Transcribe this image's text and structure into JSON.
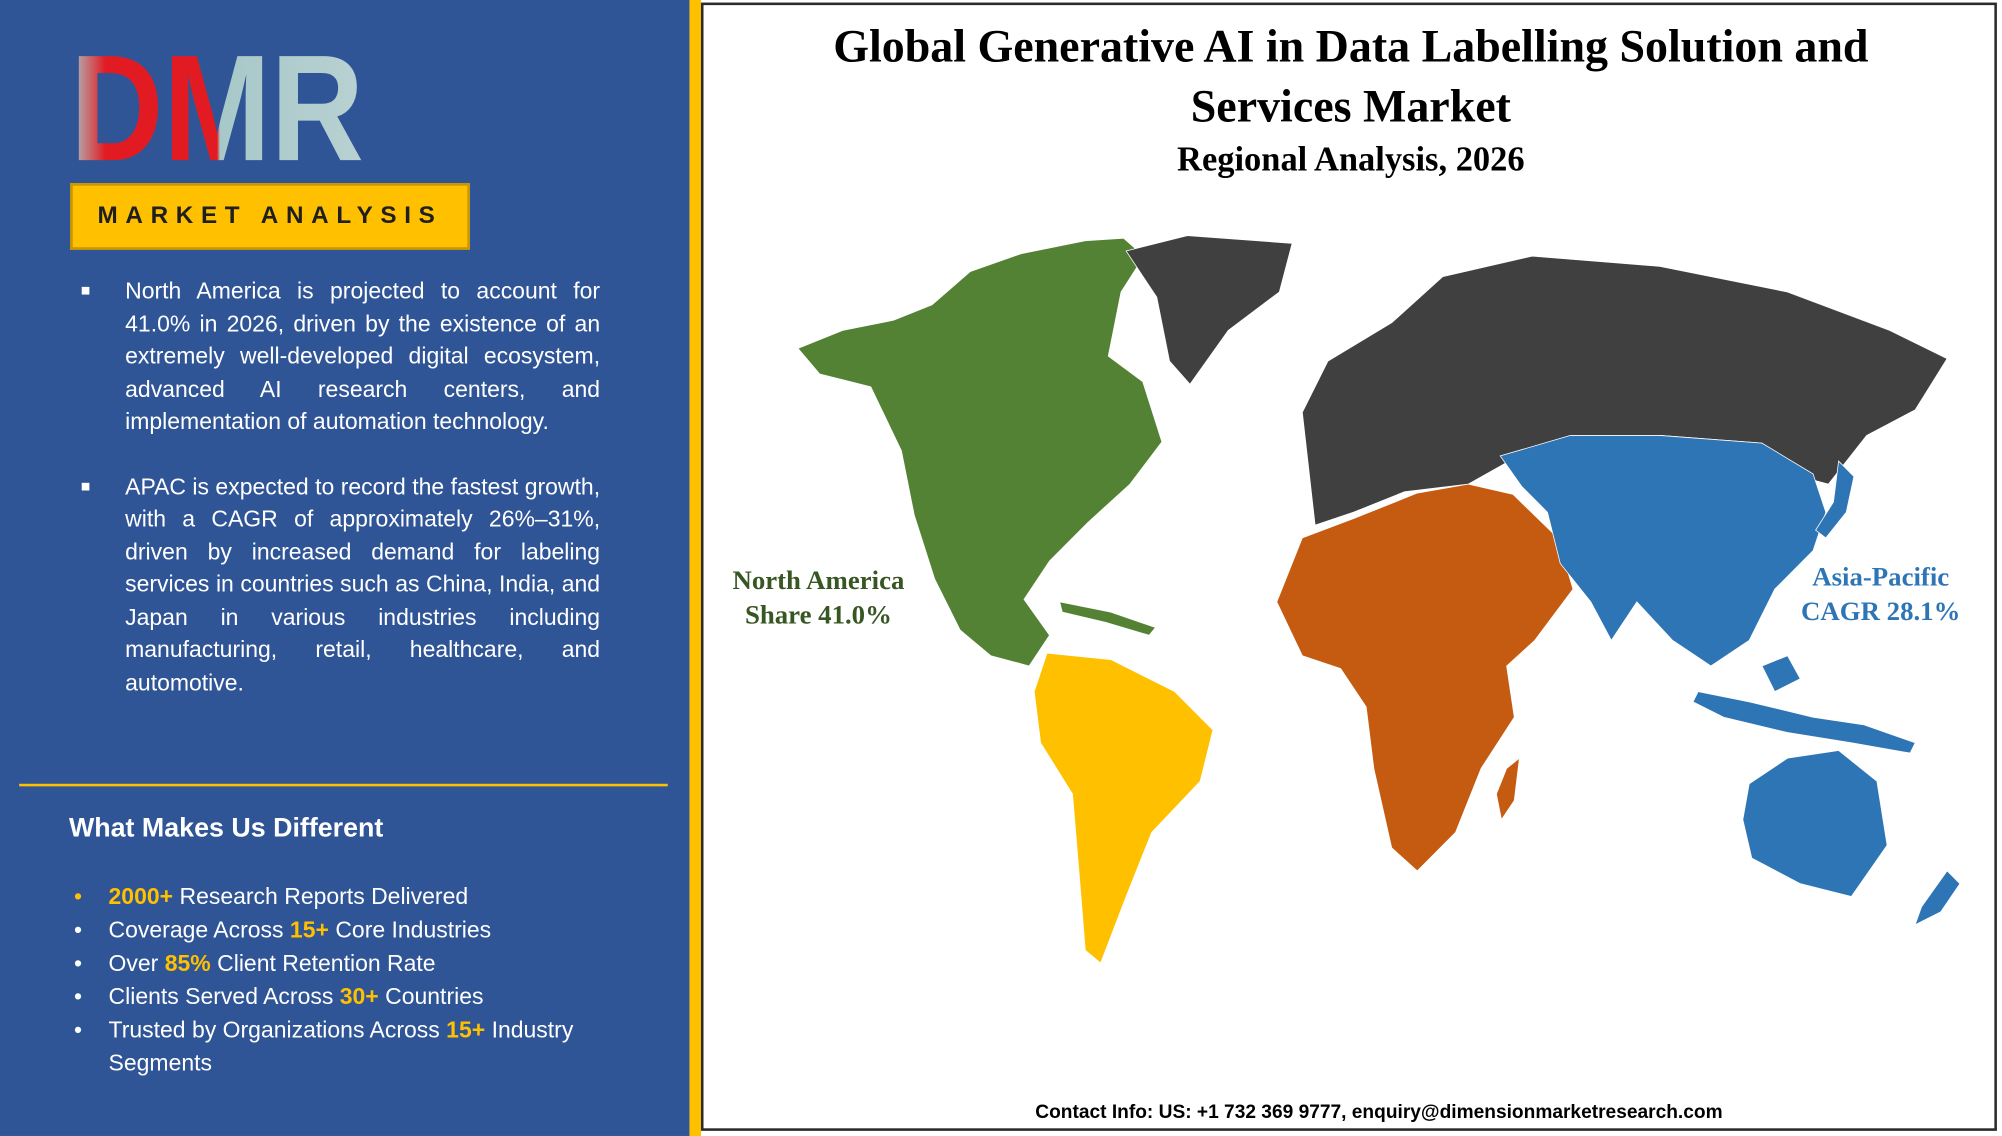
{
  "logo": {
    "text": "DMR"
  },
  "badge": "MARKET ANALYSIS",
  "highlights": [
    "North America is projected to account for 41.0% in 2026, driven by the existence of an extremely well-developed digital ecosystem, advanced AI research centers, and implementation of automation technology.",
    "APAC is expected to record the fastest growth, with a CAGR of approximately 26%–31%, driven by increased demand for labeling services in countries such as China, India, and Japan in various industries including manufacturing, retail, healthcare, and automotive."
  ],
  "different": {
    "title": "What Makes Us Different",
    "items": [
      [
        {
          "text": "2000+",
          "em": true
        },
        {
          "text": " Research Reports Delivered"
        }
      ],
      [
        {
          "text": "Coverage Across "
        },
        {
          "text": "15+",
          "em": true
        },
        {
          "text": " Core Industries"
        }
      ],
      [
        {
          "text": "Over "
        },
        {
          "text": "85%",
          "em": true
        },
        {
          "text": " Client Retention Rate"
        }
      ],
      [
        {
          "text": "Clients Served Across "
        },
        {
          "text": "30+",
          "em": true
        },
        {
          "text": " Countries"
        }
      ],
      [
        {
          "text": "Trusted by Organizations Across "
        },
        {
          "text": "15+",
          "em": true
        },
        {
          "text": " Industry Segments"
        }
      ]
    ]
  },
  "header": {
    "title_lines": [
      "Global Generative AI in Data Labelling Solution and",
      "Services Market"
    ],
    "subtitle": "Regional Analysis, 2026"
  },
  "map_labels": [
    {
      "lines": [
        "North America",
        "Share 41.0%"
      ]
    },
    {
      "lines": [
        "Asia-Pacific",
        "CAGR 28.1%"
      ]
    }
  ],
  "contact": "Contact Info: US: +1 732 369 9777, enquiry@dimensionmarketresearch.com"
}
